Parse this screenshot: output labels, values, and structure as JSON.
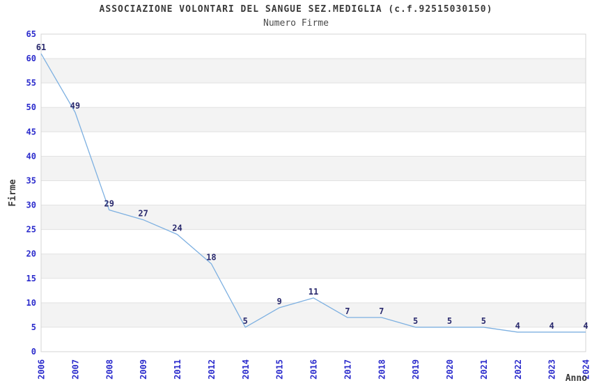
{
  "header": {
    "title": "ASSOCIAZIONE VOLONTARI DEL SANGUE SEZ.MEDIGLIA (c.f.92515030150)",
    "subtitle": "Numero Firme"
  },
  "chart_data": {
    "type": "line",
    "title": "ASSOCIAZIONE VOLONTARI DEL SANGUE SEZ.MEDIGLIA (c.f.92515030150)",
    "subtitle": "Numero Firme",
    "categories": [
      "2006",
      "2007",
      "2008",
      "2009",
      "2011",
      "2012",
      "2014",
      "2015",
      "2016",
      "2017",
      "2018",
      "2019",
      "2020",
      "2021",
      "2022",
      "2023",
      "2024"
    ],
    "values": [
      61,
      49,
      29,
      27,
      24,
      18,
      5,
      9,
      11,
      7,
      7,
      5,
      5,
      5,
      4,
      4,
      4
    ],
    "xlabel": "Anno",
    "ylabel": "Firme",
    "ylim": [
      0,
      65
    ],
    "ytick_step": 5,
    "yticks": [
      0,
      5,
      10,
      15,
      20,
      25,
      30,
      35,
      40,
      45,
      50,
      55,
      60,
      65
    ],
    "grid": "horizontal-bands",
    "legend_position": "none",
    "data_labels_shown": true,
    "colors": {
      "line": "#7db0e1",
      "tick_label": "#2b2bcc",
      "data_label": "#2a2a6e",
      "axis_title": "#3a3a3a",
      "band": "#f3f3f3",
      "gridline": "#e2e2e2",
      "border": "#d4d4d4",
      "background": "#ffffff"
    }
  }
}
